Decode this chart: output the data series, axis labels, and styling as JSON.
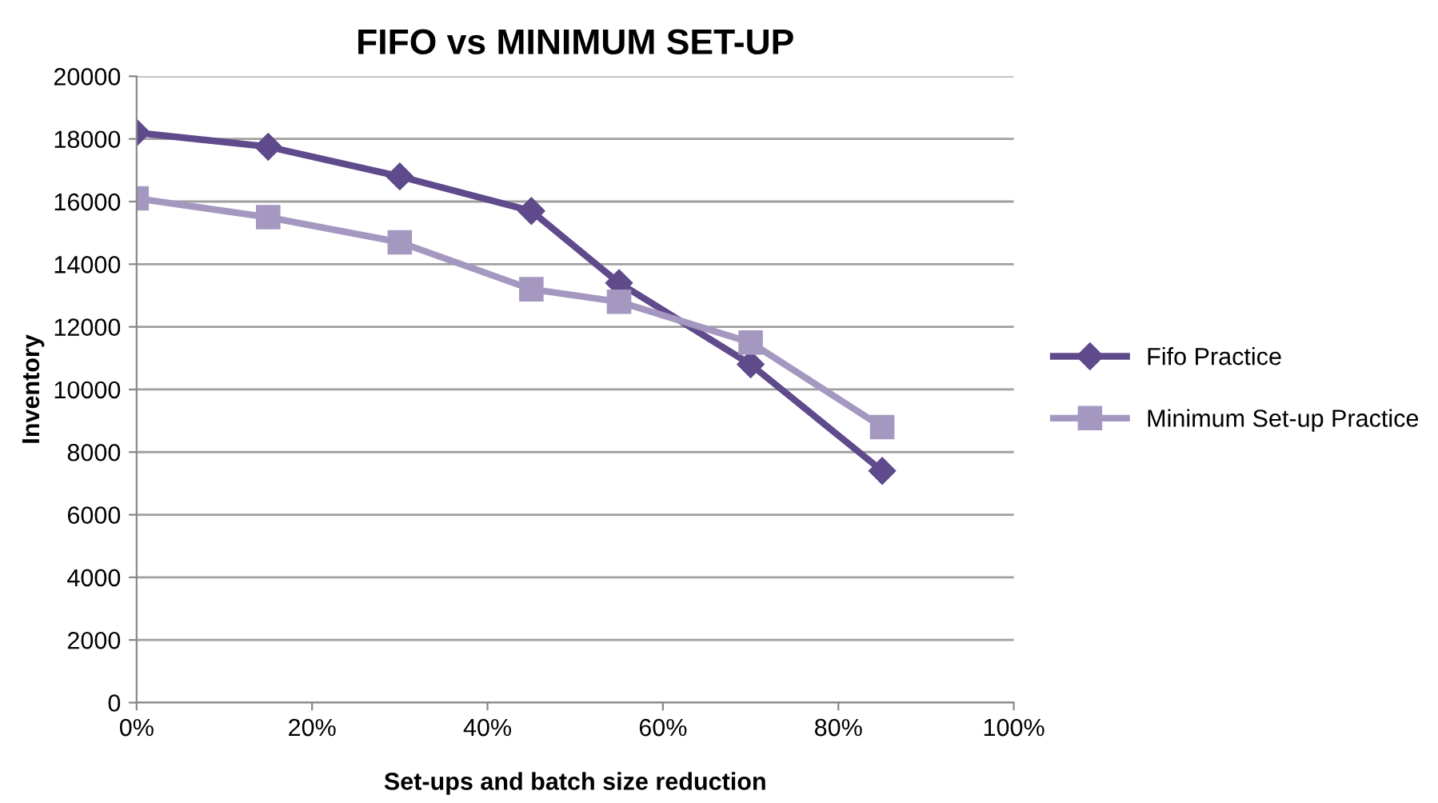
{
  "chart_data": {
    "type": "line",
    "title": "FIFO vs MINIMUM SET-UP",
    "xlabel": "Set-ups and batch size reduction",
    "ylabel": "Inventory",
    "x": [
      0,
      15,
      30,
      45,
      55,
      70,
      85
    ],
    "series": [
      {
        "name": "Fifo Practice",
        "color": "#5f4a8b",
        "values": [
          18200,
          17750,
          16800,
          15700,
          13400,
          10800,
          7400
        ],
        "marker": "diamond"
      },
      {
        "name": "Minimum Set-up Practice",
        "color": "#a598c0",
        "values": [
          16100,
          15500,
          14700,
          13200,
          12800,
          11500,
          8800
        ],
        "marker": "square"
      }
    ],
    "xlim": [
      0,
      100
    ],
    "xticks": [
      {
        "value": 0,
        "label": "0%"
      },
      {
        "value": 20,
        "label": "20%"
      },
      {
        "value": 40,
        "label": "40%"
      },
      {
        "value": 60,
        "label": "60%"
      },
      {
        "value": 80,
        "label": "80%"
      },
      {
        "value": 100,
        "label": "100%"
      }
    ],
    "ylim": [
      0,
      20000
    ],
    "yticks": [
      0,
      2000,
      4000,
      6000,
      8000,
      10000,
      12000,
      14000,
      16000,
      18000,
      20000
    ],
    "grid": "y",
    "legend": "right",
    "line_style": "solid"
  }
}
